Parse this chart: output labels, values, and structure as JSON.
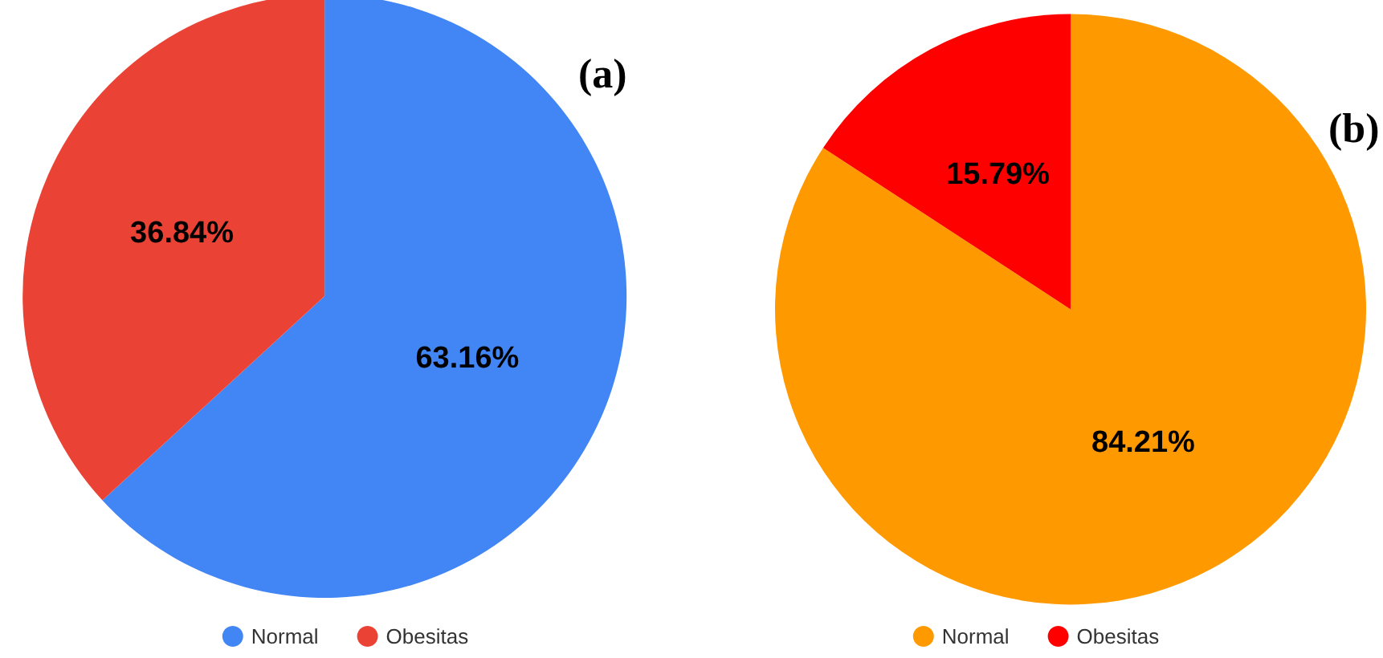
{
  "chart_data": [
    {
      "type": "pie",
      "title": "(a)",
      "categories": [
        "Normal",
        "Obesitas"
      ],
      "values": [
        63.16,
        36.84
      ],
      "value_labels": [
        "63.16%",
        "36.84%"
      ],
      "colors": [
        "#4285f4",
        "#ea4335"
      ],
      "legend": "bottom"
    },
    {
      "type": "pie",
      "title": "(b)",
      "categories": [
        "Normal",
        "Obesitas"
      ],
      "values": [
        84.21,
        15.79
      ],
      "value_labels": [
        "84.21%",
        "15.79%"
      ],
      "colors": [
        "#ff9900",
        "#ff0000"
      ],
      "legend": "bottom"
    }
  ]
}
